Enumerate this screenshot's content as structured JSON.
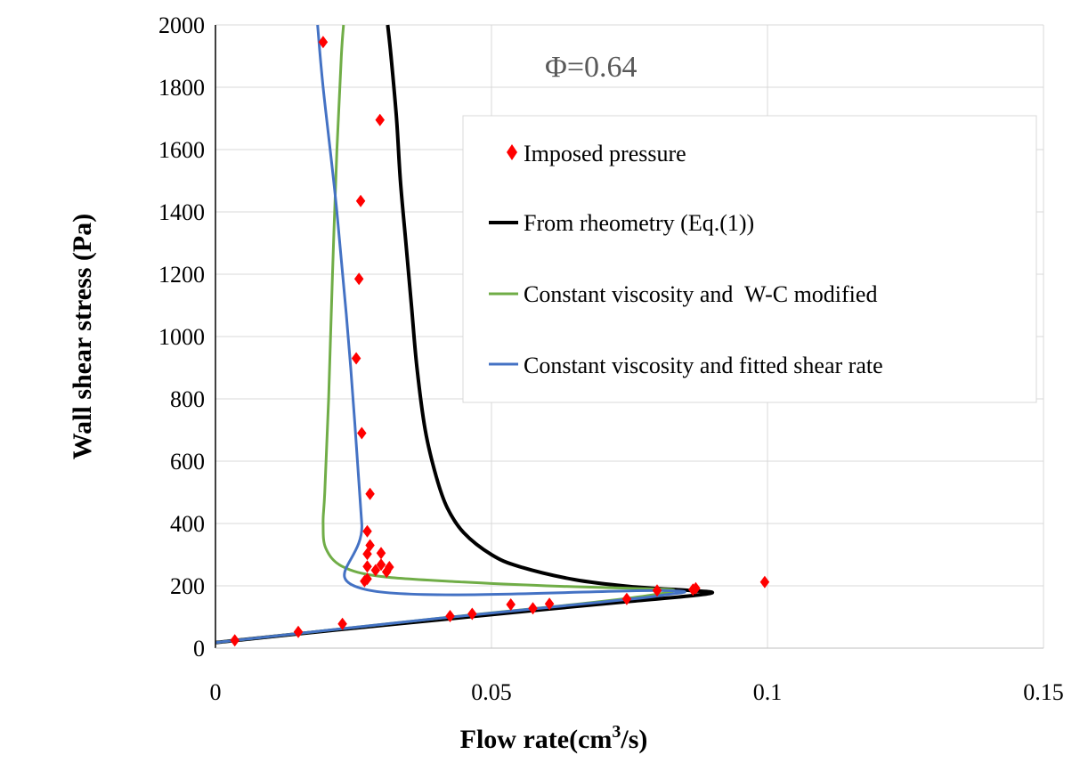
{
  "chart_data": {
    "type": "line",
    "title": "",
    "annotation": "Φ=0.64",
    "xlabel": {
      "main": "Flow rate(cm",
      "sup": "3",
      "tail": "/s)"
    },
    "ylabel": "Wall shear stress (Pa)",
    "xlim": [
      0,
      0.15
    ],
    "ylim": [
      0,
      2000
    ],
    "xticks": [
      0,
      0.05,
      0.1,
      0.15
    ],
    "xtick_labels": [
      "0",
      "0.05",
      "0.1",
      "0.15"
    ],
    "yticks": [
      0,
      200,
      400,
      600,
      800,
      1000,
      1200,
      1400,
      1600,
      1800,
      2000
    ],
    "ytick_labels": [
      "0",
      "200",
      "400",
      "600",
      "800",
      "1000",
      "1200",
      "1400",
      "1600",
      "1800",
      "2000"
    ],
    "grid": true,
    "legend_position": "right",
    "series": [
      {
        "name": "Imposed pressure",
        "kind": "scatter",
        "marker": "diamond",
        "color": "#ff0000",
        "points": [
          [
            0.0035,
            25
          ],
          [
            0.015,
            52
          ],
          [
            0.023,
            78
          ],
          [
            0.0425,
            103
          ],
          [
            0.0465,
            110
          ],
          [
            0.0535,
            140
          ],
          [
            0.0575,
            128
          ],
          [
            0.0605,
            142
          ],
          [
            0.0745,
            158
          ],
          [
            0.08,
            185
          ],
          [
            0.0865,
            188
          ],
          [
            0.087,
            192
          ],
          [
            0.0995,
            212
          ],
          [
            0.027,
            215
          ],
          [
            0.0275,
            222
          ],
          [
            0.0275,
            262
          ],
          [
            0.029,
            250
          ],
          [
            0.03,
            268
          ],
          [
            0.031,
            245
          ],
          [
            0.0315,
            260
          ],
          [
            0.0275,
            302
          ],
          [
            0.03,
            305
          ],
          [
            0.028,
            330
          ],
          [
            0.0275,
            375
          ],
          [
            0.028,
            495
          ],
          [
            0.0265,
            690
          ],
          [
            0.0255,
            930
          ],
          [
            0.026,
            1185
          ],
          [
            0.0263,
            1435
          ],
          [
            0.0298,
            1695
          ],
          [
            0.0195,
            1945
          ]
        ]
      },
      {
        "name": "From rheometry (Eq.(1))",
        "kind": "line",
        "color": "#000000",
        "points": [
          [
            0,
            18
          ],
          [
            0.02,
            55
          ],
          [
            0.04,
            90
          ],
          [
            0.06,
            125
          ],
          [
            0.075,
            150
          ],
          [
            0.085,
            166
          ],
          [
            0.09,
            178
          ],
          [
            0.086,
            185
          ],
          [
            0.075,
            198
          ],
          [
            0.065,
            220
          ],
          [
            0.055,
            262
          ],
          [
            0.05,
            300
          ],
          [
            0.045,
            370
          ],
          [
            0.042,
            450
          ],
          [
            0.04,
            550
          ],
          [
            0.038,
            700
          ],
          [
            0.0365,
            900
          ],
          [
            0.0355,
            1100
          ],
          [
            0.0345,
            1300
          ],
          [
            0.0335,
            1500
          ],
          [
            0.0328,
            1700
          ],
          [
            0.0318,
            1900
          ],
          [
            0.0312,
            2000
          ]
        ]
      },
      {
        "name": "Constant viscosity and  W-C modified",
        "kind": "line",
        "color": "#70ad47",
        "points": [
          [
            0,
            18
          ],
          [
            0.04,
            95
          ],
          [
            0.07,
            150
          ],
          [
            0.083,
            184
          ],
          [
            0.075,
            192
          ],
          [
            0.06,
            200
          ],
          [
            0.045,
            212
          ],
          [
            0.03,
            230
          ],
          [
            0.023,
            262
          ],
          [
            0.02,
            320
          ],
          [
            0.0195,
            400
          ],
          [
            0.0198,
            500
          ],
          [
            0.0205,
            800
          ],
          [
            0.0212,
            1200
          ],
          [
            0.022,
            1600
          ],
          [
            0.0228,
            1900
          ],
          [
            0.0232,
            2000
          ]
        ]
      },
      {
        "name": "Constant viscosity and fitted shear rate",
        "kind": "line",
        "color": "#4472c4",
        "points": [
          [
            0,
            18
          ],
          [
            0.04,
            95
          ],
          [
            0.07,
            148
          ],
          [
            0.081,
            170
          ],
          [
            0.0805,
            185
          ],
          [
            0.0275,
            187
          ],
          [
            0.0265,
            400
          ],
          [
            0.0245,
            900
          ],
          [
            0.022,
            1400
          ],
          [
            0.0195,
            1800
          ],
          [
            0.0185,
            2000
          ]
        ]
      }
    ]
  }
}
